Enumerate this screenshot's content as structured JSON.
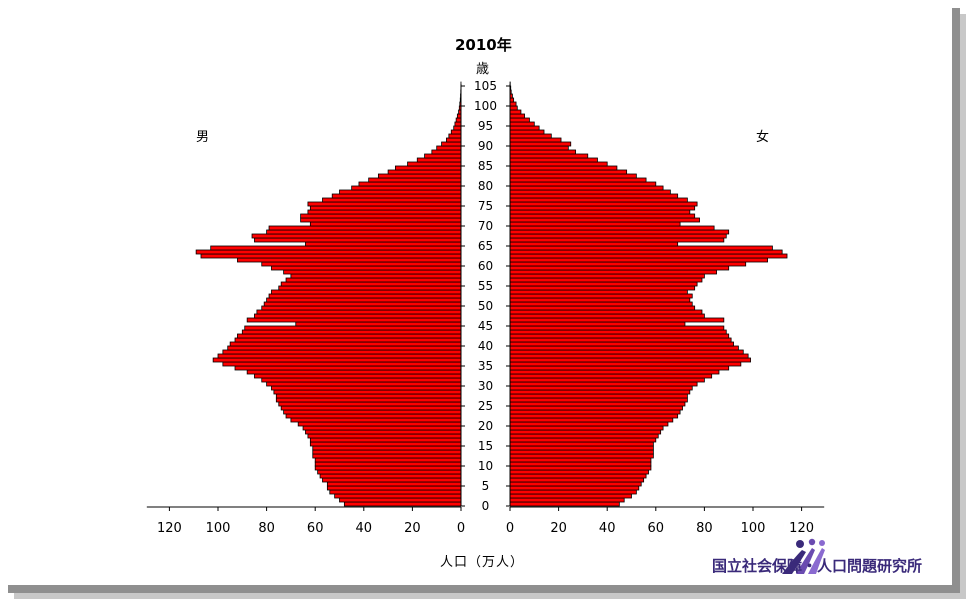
{
  "chart_data": {
    "type": "bar",
    "title": "2010年",
    "y_axis_unit": "歳",
    "xlabel": "人口（万人）",
    "left_label": "男",
    "right_label": "女",
    "bar_color": "#ff0000",
    "age_ticks": [
      0,
      5,
      10,
      15,
      20,
      25,
      30,
      35,
      40,
      45,
      50,
      55,
      60,
      65,
      70,
      75,
      80,
      85,
      90,
      95,
      100,
      105
    ],
    "x_ticks": [
      0,
      20,
      40,
      60,
      80,
      100,
      120
    ],
    "xlim": [
      0,
      127
    ],
    "ages": [
      0,
      1,
      2,
      3,
      4,
      5,
      6,
      7,
      8,
      9,
      10,
      11,
      12,
      13,
      14,
      15,
      16,
      17,
      18,
      19,
      20,
      21,
      22,
      23,
      24,
      25,
      26,
      27,
      28,
      29,
      30,
      31,
      32,
      33,
      34,
      35,
      36,
      37,
      38,
      39,
      40,
      41,
      42,
      43,
      44,
      45,
      46,
      47,
      48,
      49,
      50,
      51,
      52,
      53,
      54,
      55,
      56,
      57,
      58,
      59,
      60,
      61,
      62,
      63,
      64,
      65,
      66,
      67,
      68,
      69,
      70,
      71,
      72,
      73,
      74,
      75,
      76,
      77,
      78,
      79,
      80,
      81,
      82,
      83,
      84,
      85,
      86,
      87,
      88,
      89,
      90,
      91,
      92,
      93,
      94,
      95,
      96,
      97,
      98,
      99,
      100,
      101,
      102,
      103,
      104,
      105
    ],
    "series": [
      {
        "name": "男",
        "values": [
          48,
          50,
          52,
          54,
          55,
          55,
          57,
          58,
          59,
          60,
          60,
          60,
          61,
          61,
          61,
          62,
          62,
          63,
          64,
          65,
          67,
          70,
          72,
          73,
          74,
          75,
          76,
          76,
          77,
          78,
          80,
          82,
          85,
          88,
          93,
          98,
          102,
          100,
          98,
          96,
          95,
          93,
          92,
          90,
          89,
          68,
          88,
          85,
          84,
          82,
          81,
          80,
          79,
          78,
          75,
          74,
          72,
          70,
          73,
          78,
          82,
          92,
          107,
          109,
          103,
          64,
          85,
          86,
          80,
          79,
          62,
          66,
          66,
          63,
          62,
          63,
          57,
          53,
          50,
          45,
          42,
          38,
          34,
          30,
          27,
          22,
          18,
          15,
          12,
          10,
          8,
          6,
          5,
          4,
          3,
          2.5,
          2,
          1.5,
          1,
          0.7,
          0.5,
          0.3,
          0.2,
          0.1,
          0.05,
          0.02
        ]
      },
      {
        "name": "女",
        "values": [
          45,
          47,
          50,
          52,
          53,
          54,
          55,
          56,
          57,
          58,
          58,
          58,
          59,
          59,
          59,
          59,
          60,
          61,
          62,
          63,
          65,
          67,
          69,
          70,
          71,
          72,
          73,
          73,
          74,
          75,
          77,
          80,
          83,
          86,
          90,
          95,
          99,
          98,
          96,
          94,
          92,
          91,
          90,
          89,
          88,
          72,
          88,
          80,
          79,
          76,
          75,
          74,
          75,
          73,
          76,
          77,
          79,
          80,
          85,
          90,
          97,
          106,
          114,
          112,
          108,
          69,
          88,
          89,
          90,
          84,
          70,
          78,
          76,
          74,
          76,
          77,
          73,
          69,
          66,
          63,
          60,
          56,
          52,
          48,
          44,
          40,
          36,
          32,
          27,
          24,
          25,
          21,
          17,
          14,
          12,
          10,
          8,
          6,
          4.5,
          3,
          2.5,
          1.5,
          1,
          0.5,
          0.3,
          0.1
        ]
      }
    ]
  },
  "logo": {
    "text": "国立社会保障・人口問題研究所",
    "color": "#3a2a7a",
    "icon": "people-logo-icon"
  }
}
